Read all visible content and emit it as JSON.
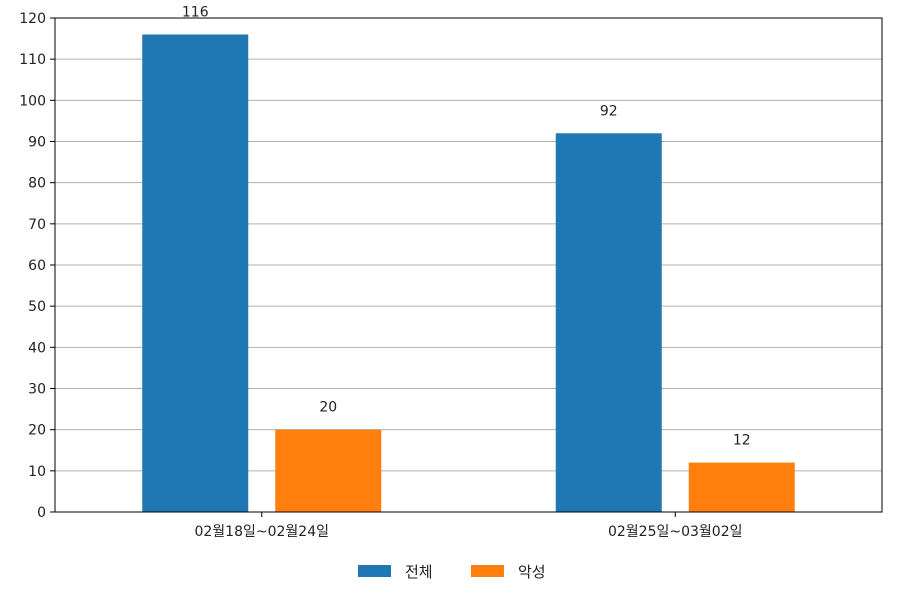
{
  "chart_data": {
    "type": "bar",
    "categories": [
      "02월18일~02월24일",
      "02월25일~03월02일"
    ],
    "series": [
      {
        "name": "전체",
        "values": [
          116,
          92
        ],
        "color": "#1f77b4"
      },
      {
        "name": "악성",
        "values": [
          20,
          12
        ],
        "color": "#ff7f0e"
      }
    ],
    "ylim": [
      0,
      120
    ],
    "y_ticks": [
      0,
      10,
      20,
      30,
      40,
      50,
      60,
      70,
      80,
      90,
      100,
      110,
      120
    ],
    "grid": "horizontal",
    "legend": "bottom-center",
    "title": "",
    "xlabel": "",
    "ylabel": ""
  }
}
